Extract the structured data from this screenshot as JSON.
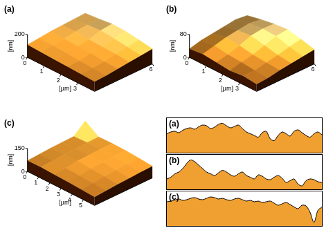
{
  "chart_data": [
    {
      "type": "surface",
      "title": "(a)",
      "x_label": "[µm]",
      "z_label": "[nm]",
      "xlim": [
        0,
        4
      ],
      "ylim": [
        0,
        6
      ],
      "zlim": [
        0,
        200
      ],
      "xticks": [
        0,
        1,
        2,
        3
      ],
      "yticks": [
        6
      ],
      "zticks": [
        0,
        200
      ],
      "color": "#f0a030",
      "cells": [
        [
          110,
          105,
          100,
          95,
          90,
          85
        ],
        [
          120,
          115,
          110,
          100,
          95,
          90
        ],
        [
          130,
          125,
          120,
          115,
          105,
          100
        ],
        [
          135,
          140,
          130,
          125,
          120,
          110
        ],
        [
          140,
          150,
          160,
          150,
          135,
          120
        ],
        [
          145,
          155,
          170,
          165,
          150,
          130
        ]
      ]
    },
    {
      "type": "surface",
      "title": "(b)",
      "x_label": "[µm]",
      "z_label": "[nm]",
      "xlim": [
        0,
        4
      ],
      "ylim": [
        0,
        6
      ],
      "zlim": [
        0,
        80
      ],
      "xticks": [
        0,
        1,
        2,
        3
      ],
      "yticks": [
        6
      ],
      "zticks": [
        0,
        80
      ],
      "color": "#f0a030",
      "cells": [
        [
          30,
          35,
          30,
          25,
          30,
          25
        ],
        [
          40,
          45,
          38,
          35,
          30,
          28
        ],
        [
          45,
          55,
          50,
          42,
          38,
          35
        ],
        [
          50,
          60,
          65,
          55,
          45,
          40
        ],
        [
          55,
          65,
          70,
          68,
          55,
          45
        ],
        [
          50,
          60,
          68,
          72,
          62,
          50
        ]
      ]
    },
    {
      "type": "surface",
      "title": "(c)",
      "x_label": "[µm]",
      "z_label": "[nm]",
      "xlim": [
        0,
        6
      ],
      "ylim": [
        0,
        6
      ],
      "zlim": [
        0,
        150
      ],
      "xticks": [
        0,
        1,
        2,
        3,
        4,
        5
      ],
      "yticks": [],
      "zticks": [
        0,
        150
      ],
      "color": "#f0a030",
      "cells": [
        [
          70,
          72,
          68,
          65,
          60,
          55
        ],
        [
          75,
          78,
          74,
          70,
          65,
          60
        ],
        [
          80,
          82,
          85,
          78,
          72,
          66
        ],
        [
          82,
          85,
          88,
          84,
          78,
          70
        ],
        [
          84,
          88,
          90,
          88,
          82,
          74
        ],
        [
          150,
          90,
          92,
          90,
          84,
          76
        ]
      ]
    },
    {
      "type": "area",
      "title": "(a)",
      "ylim": [
        0,
        100
      ],
      "tick_labels": false,
      "color": "#f0a030",
      "values": [
        55,
        60,
        62,
        58,
        65,
        70,
        72,
        68,
        75,
        80,
        78,
        70,
        74,
        82,
        85,
        78,
        72,
        76,
        80,
        70,
        60,
        55,
        50,
        45,
        58,
        62,
        40,
        35,
        50,
        60,
        55,
        48,
        62,
        66,
        58,
        50,
        45,
        55,
        60,
        52
      ]
    },
    {
      "type": "area",
      "title": "(b)",
      "ylim": [
        0,
        100
      ],
      "tick_labels": false,
      "color": "#f0a030",
      "values": [
        30,
        35,
        45,
        50,
        60,
        75,
        85,
        80,
        70,
        60,
        50,
        45,
        40,
        48,
        55,
        50,
        42,
        38,
        45,
        50,
        40,
        35,
        30,
        42,
        38,
        30,
        28,
        35,
        40,
        32,
        20,
        25,
        30,
        15,
        10,
        25,
        30,
        28,
        22,
        20
      ]
    },
    {
      "type": "area",
      "title": "(c)",
      "ylim": [
        0,
        100
      ],
      "tick_labels": false,
      "color": "#f0a030",
      "values": [
        70,
        72,
        75,
        78,
        74,
        76,
        80,
        82,
        78,
        76,
        80,
        84,
        82,
        78,
        80,
        76,
        74,
        78,
        80,
        76,
        72,
        74,
        70,
        72,
        68,
        70,
        72,
        66,
        60,
        64,
        68,
        62,
        55,
        50,
        60,
        58,
        40,
        10,
        45,
        55
      ]
    }
  ]
}
